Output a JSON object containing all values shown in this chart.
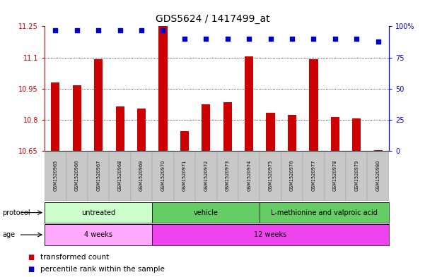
{
  "title": "GDS5624 / 1417499_at",
  "samples": [
    "GSM1520965",
    "GSM1520966",
    "GSM1520967",
    "GSM1520968",
    "GSM1520969",
    "GSM1520970",
    "GSM1520971",
    "GSM1520972",
    "GSM1520973",
    "GSM1520974",
    "GSM1520975",
    "GSM1520976",
    "GSM1520977",
    "GSM1520978",
    "GSM1520979",
    "GSM1520980"
  ],
  "bar_values": [
    10.98,
    10.965,
    11.09,
    10.865,
    10.855,
    11.25,
    10.745,
    10.875,
    10.885,
    11.105,
    10.835,
    10.825,
    11.09,
    10.815,
    10.805,
    10.655
  ],
  "dot_values": [
    97,
    97,
    97,
    97,
    97,
    97,
    90,
    90,
    90,
    90,
    90,
    90,
    90,
    90,
    90,
    88
  ],
  "ymin": 10.65,
  "ymax": 11.25,
  "yticks": [
    10.65,
    10.8,
    10.95,
    11.1,
    11.25
  ],
  "ytick_labels": [
    "10.65",
    "10.8",
    "10.95",
    "11.1",
    "11.25"
  ],
  "y2min": 0,
  "y2max": 100,
  "y2ticks": [
    0,
    25,
    50,
    75,
    100
  ],
  "y2tick_labels": [
    "0",
    "25",
    "50",
    "75",
    "100%"
  ],
  "bar_color": "#cc0000",
  "dot_color": "#0000cc",
  "grid_dotted_at": [
    10.8,
    10.95,
    11.1
  ],
  "protocol_groups": [
    {
      "label": "untreated",
      "start": 0,
      "end": 5,
      "color": "#ccffcc"
    },
    {
      "label": "vehicle",
      "start": 5,
      "end": 10,
      "color": "#66cc66"
    },
    {
      "label": "L-methionine and valproic acid",
      "start": 10,
      "end": 16,
      "color": "#66cc66"
    }
  ],
  "age_groups": [
    {
      "label": "4 weeks",
      "start": 0,
      "end": 5,
      "color": "#ffaaff"
    },
    {
      "label": "12 weeks",
      "start": 5,
      "end": 16,
      "color": "#ee44ee"
    }
  ],
  "bar_width": 0.4,
  "dot_size": 14
}
